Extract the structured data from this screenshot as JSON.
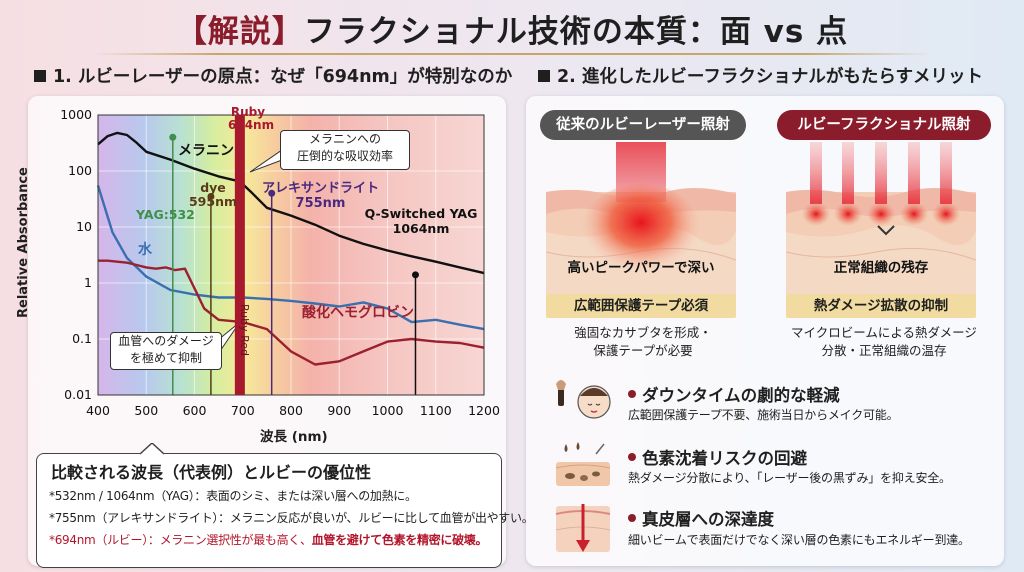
{
  "title": {
    "bracket": "【解説】",
    "main": "フラクショナル技術の本質：面 vs 点"
  },
  "left": {
    "section_title": "1. ルビーレーザーの原点：なぜ「694nm」が特別なのか",
    "chart_data": {
      "type": "line",
      "xlabel": "波長 (nm)",
      "ylabel": "Relative Absorbance",
      "x_ticks": [
        "400",
        "500",
        "600",
        "700",
        "800",
        "900",
        "1000",
        "1100",
        "1200"
      ],
      "y_ticks": [
        "1000",
        "100",
        "10",
        "1",
        "0.1",
        "0.01"
      ],
      "xlim": [
        400,
        1200
      ],
      "ylim": [
        0.01,
        1000
      ],
      "log_y": true,
      "series": [
        {
          "name": "メラニン",
          "color": "#111111",
          "x": [
            400,
            420,
            440,
            460,
            480,
            500,
            550,
            600,
            650,
            694,
            720,
            750,
            800,
            850,
            900,
            950,
            1000,
            1050,
            1100,
            1150,
            1200
          ],
          "y": [
            300,
            420,
            480,
            440,
            320,
            220,
            160,
            110,
            80,
            65,
            40,
            22,
            16,
            11,
            7,
            5,
            3.8,
            3,
            2.4,
            1.9,
            1.5
          ]
        },
        {
          "name": "水",
          "color": "#3a6fb0",
          "x": [
            400,
            430,
            460,
            500,
            550,
            600,
            650,
            700,
            750,
            800,
            850,
            900,
            950,
            1000,
            1050,
            1100,
            1150,
            1200
          ],
          "y": [
            55,
            8,
            2.8,
            1.3,
            0.75,
            0.62,
            0.55,
            0.55,
            0.52,
            0.48,
            0.43,
            0.38,
            0.45,
            0.35,
            0.2,
            0.22,
            0.18,
            0.15
          ]
        },
        {
          "name": "酸化ヘモグロビン",
          "color": "#9b2030",
          "x": [
            400,
            420,
            440,
            460,
            480,
            500,
            520,
            540,
            560,
            580,
            600,
            620,
            650,
            700,
            750,
            800,
            850,
            900,
            950,
            1000,
            1050,
            1100,
            1150,
            1200
          ],
          "y": [
            2.5,
            2.5,
            2.4,
            2.3,
            2.1,
            1.9,
            1.8,
            1.9,
            1.7,
            1.8,
            0.8,
            0.35,
            0.22,
            0.2,
            0.15,
            0.06,
            0.035,
            0.04,
            0.06,
            0.09,
            0.1,
            0.09,
            0.085,
            0.07
          ]
        }
      ],
      "markers": [
        {
          "label": "YAG:532",
          "x": 555,
          "y": 400,
          "color": "#3f8f4a"
        },
        {
          "label": "dye\n595nm",
          "x": 634,
          "y": 35,
          "color": "#5a3a1a"
        },
        {
          "label": "アレキサンドライト\n755nm",
          "x": 760,
          "y": 40,
          "color": "#4a2a80"
        },
        {
          "label": "Q-Switched YAG\n1064nm",
          "x": 1058,
          "y": 1.4,
          "color": "#111111"
        }
      ],
      "ruby": {
        "top_label": "Ruby\n694nm",
        "vertical_label": "Ruby Red",
        "x": 694,
        "color": "#a8192e"
      },
      "callouts": [
        {
          "text": "メラニンへの\n圧倒的な吸収効率"
        },
        {
          "text": "血管へのダメージ\nを極めて抑制"
        }
      ]
    },
    "caption": {
      "title": "比較される波長（代表例）とルビーの優位性",
      "line1": "*532nm / 1064nm（YAG）：表面のシミ、または深い層への加熱に。",
      "line2": "*755nm（アレキサンドライト）：メラニン反応が良いが、ルビーに比して血管が出やすい。",
      "line3_prefix": "*694nm（ルビー）：メラニン選択性が最も高く、",
      "line3_red": "血管を避けて色素を精密に破壊。"
    }
  },
  "right": {
    "section_title": "2. 進化したルビーフラクショナルがもたらすメリット",
    "conventional": {
      "header": "従来のルビーレーザー照射",
      "color": "#555555",
      "inner_text": "高いピークパワーで深い",
      "bar": "広範囲保護テープ必須",
      "desc1": "強固なカサブタを形成・",
      "desc2": "保護テープが必要"
    },
    "fractional": {
      "header": "ルビーフラクショナル照射",
      "color": "#8a1c2b",
      "inner_text": "正常組織の残存",
      "bar": "熱ダメージ拡散の抑制",
      "desc1": "マイクロビームによる熱ダメージ",
      "desc2": "分散・正常組織の温存"
    },
    "benefits": [
      {
        "icon": "face-makeup-icon",
        "title": "ダウンタイムの劇的な軽減",
        "desc": "広範囲保護テープ不要、施術当日からメイク可能。"
      },
      {
        "icon": "skin-pigment-icon",
        "title": "色素沈着リスクの回避",
        "desc": "熱ダメージ分散により、「レーザー後の黒ずみ」を抑え安全。"
      },
      {
        "icon": "skin-depth-icon",
        "title": "真皮層への深達度",
        "desc": "細いビームで表面だけでなく深い層の色素にもエネルギー到達。"
      }
    ]
  }
}
